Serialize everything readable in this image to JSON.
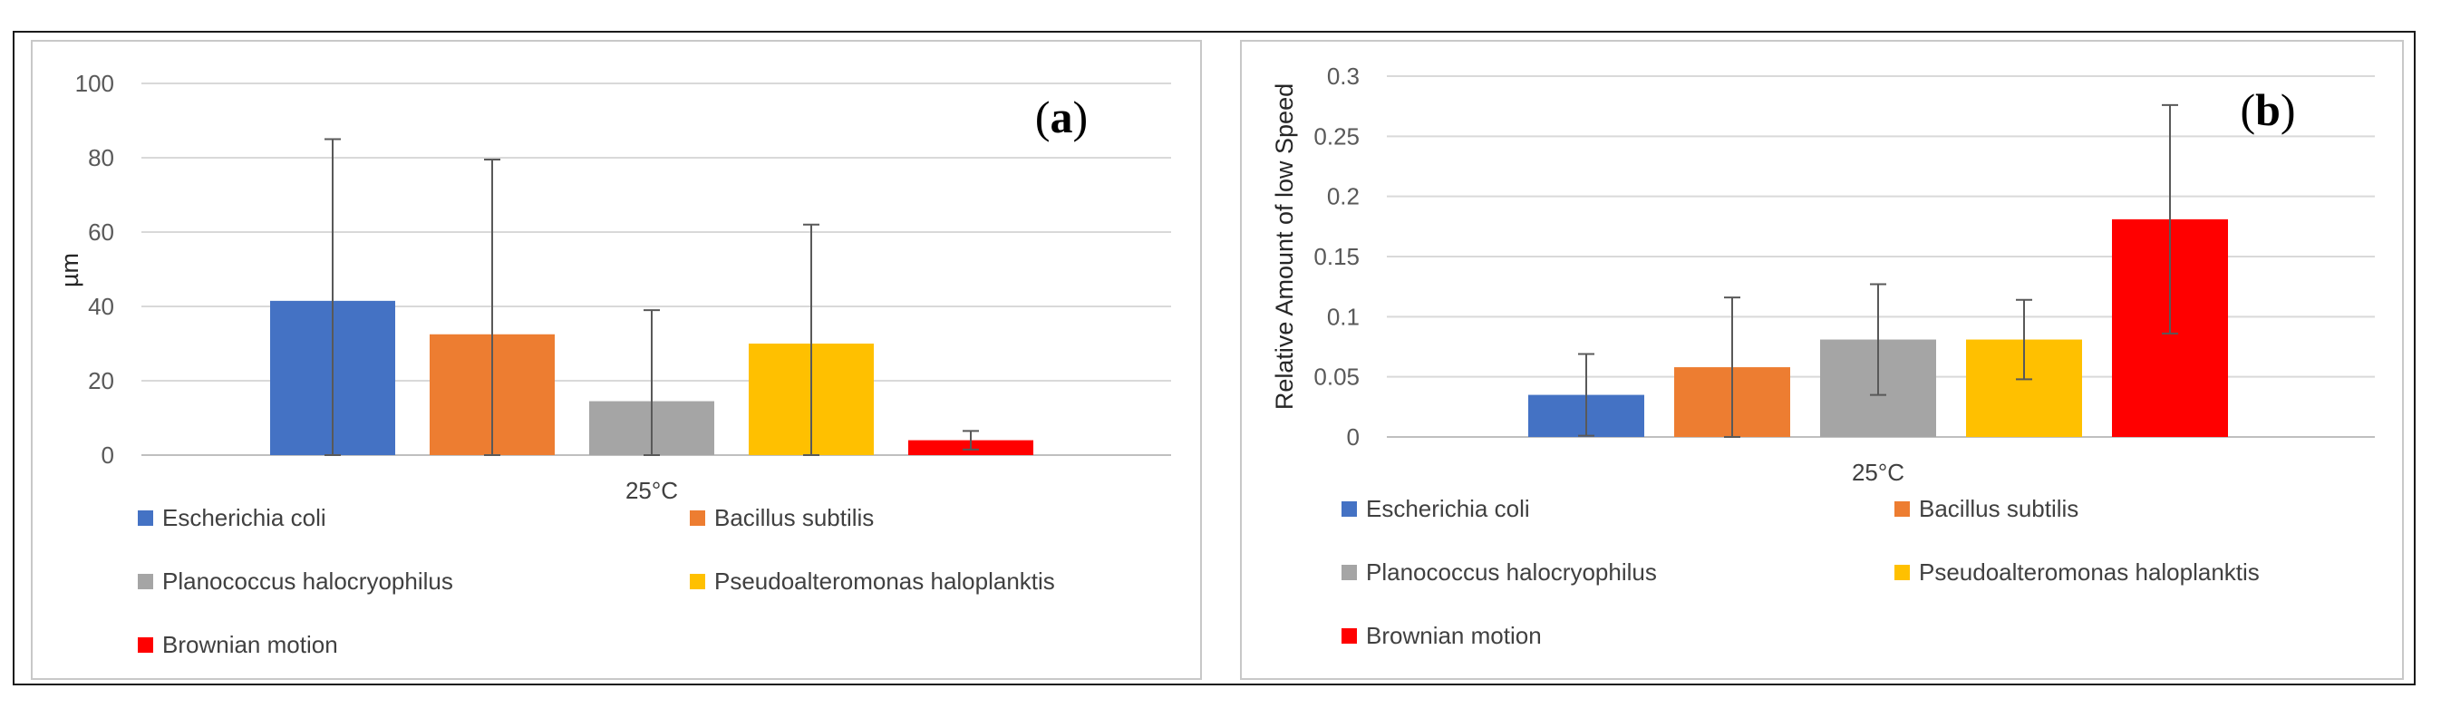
{
  "chart_data": [
    {
      "id": "a",
      "type": "bar",
      "panel_label": "a",
      "ylabel": "µm",
      "xlabel": "",
      "category_label": "25°C",
      "ylim": [
        0,
        100
      ],
      "yticks": [
        0,
        20,
        40,
        60,
        80,
        100
      ],
      "ytick_labels": [
        "0",
        "20",
        "40",
        "60",
        "80",
        "100"
      ],
      "grid": true,
      "legend_position": "bottom",
      "series": [
        {
          "name": "Escherichia coli",
          "color": "#4472C4",
          "value": 41.5,
          "error": 43.5
        },
        {
          "name": "Bacillus subtilis",
          "color": "#ED7D31",
          "value": 32.5,
          "error": 47
        },
        {
          "name": "Planococcus halocryophilus",
          "color": "#A5A5A5",
          "value": 14.5,
          "error": 24.5
        },
        {
          "name": "Pseudoalteromonas haloplanktis",
          "color": "#FFC000",
          "value": 30,
          "error": 32
        },
        {
          "name": "Brownian motion",
          "color": "#FF0000",
          "value": 4,
          "error": 2.5
        }
      ]
    },
    {
      "id": "b",
      "type": "bar",
      "panel_label": "b",
      "ylabel": "Relative Amount of low Speed",
      "xlabel": "",
      "category_label": "25°C",
      "ylim": [
        0,
        0.3
      ],
      "yticks": [
        0,
        0.05,
        0.1,
        0.15,
        0.2,
        0.25,
        0.3
      ],
      "ytick_labels": [
        "0",
        "0.05",
        "0.1",
        "0.15",
        "0.2",
        "0.25",
        "0.3"
      ],
      "grid": true,
      "legend_position": "bottom",
      "series": [
        {
          "name": "Escherichia coli",
          "color": "#4472C4",
          "value": 0.035,
          "error": 0.034
        },
        {
          "name": "Bacillus subtilis",
          "color": "#ED7D31",
          "value": 0.058,
          "error": 0.058
        },
        {
          "name": "Planococcus halocryophilus",
          "color": "#A5A5A5",
          "value": 0.081,
          "error": 0.046
        },
        {
          "name": "Pseudoalteromonas haloplanktis",
          "color": "#FFC000",
          "value": 0.081,
          "error": 0.033
        },
        {
          "name": "Brownian motion",
          "color": "#FF0000",
          "value": 0.181,
          "error": 0.095
        }
      ]
    }
  ]
}
